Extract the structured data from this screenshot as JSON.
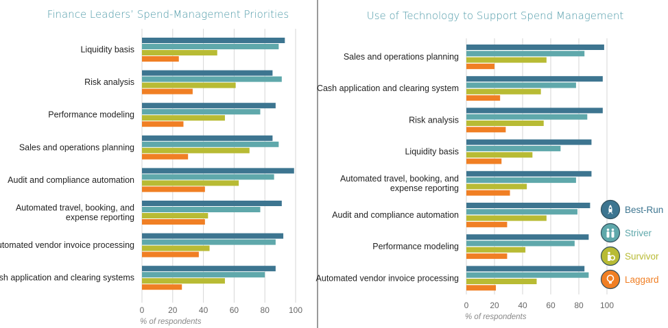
{
  "legend": [
    {
      "name": "Best-Run",
      "color": "#3d7590",
      "icon": "rocket-icon"
    },
    {
      "name": "Striver",
      "color": "#5fa8ab",
      "icon": "people-icon"
    },
    {
      "name": "Survivor",
      "color": "#b8bb34",
      "icon": "life-ring-icon"
    },
    {
      "name": "Laggard",
      "color": "#f07f24",
      "icon": "lightbulb-icon"
    }
  ],
  "chart_data": [
    {
      "type": "bar",
      "orientation": "horizontal",
      "title": "Finance Leaders’ Spend-Management Priorities",
      "xlabel": "% of respondents",
      "xlim": [
        0,
        100
      ],
      "xticks": [
        0,
        20,
        40,
        60,
        80,
        100
      ],
      "categories": [
        "Liquidity basis",
        "Risk analysis",
        "Performance modeling",
        "Sales and operations planning",
        "Audit and compliance automation",
        "Automated travel, booking, and expense reporting",
        "Automated vendor invoice processing",
        "Cash application and clearing systems"
      ],
      "category_lines": [
        [
          "Liquidity basis"
        ],
        [
          "Risk analysis"
        ],
        [
          "Performance modeling"
        ],
        [
          "Sales and operations planning"
        ],
        [
          "Audit and compliance automation"
        ],
        [
          "Automated travel, booking, and",
          "expense reporting"
        ],
        [
          "Automated vendor invoice processing"
        ],
        [
          "Cash application and clearing systems"
        ]
      ],
      "series": [
        {
          "name": "Best-Run",
          "values": [
            93,
            85,
            87,
            85,
            99,
            91,
            92,
            87
          ]
        },
        {
          "name": "Striver",
          "values": [
            89,
            91,
            77,
            89,
            86,
            77,
            87,
            80
          ]
        },
        {
          "name": "Survivor",
          "values": [
            49,
            61,
            54,
            70,
            63,
            43,
            44,
            54
          ]
        },
        {
          "name": "Laggard",
          "values": [
            24,
            33,
            27,
            30,
            41,
            41,
            37,
            26
          ]
        }
      ]
    },
    {
      "type": "bar",
      "orientation": "horizontal",
      "title": "Use of Technology to Support Spend Management",
      "xlabel": "% of respondents",
      "xlim": [
        0,
        100
      ],
      "xticks": [
        0,
        20,
        40,
        60,
        80,
        100
      ],
      "categories": [
        "Sales and operations planning",
        "Cash application and clearing system",
        "Risk analysis",
        "Liquidity basis",
        "Automated travel, booking, and expense reporting",
        "Audit and compliance automation",
        "Performance modeling",
        "Automated vendor invoice processing"
      ],
      "category_lines": [
        [
          "Sales and operations planning"
        ],
        [
          "Cash application and clearing system"
        ],
        [
          "Risk analysis"
        ],
        [
          "Liquidity basis"
        ],
        [
          "Automated travel, booking, and",
          "expense reporting"
        ],
        [
          "Audit and compliance automation"
        ],
        [
          "Performance modeling"
        ],
        [
          "Automated vendor invoice processing"
        ]
      ],
      "series": [
        {
          "name": "Best-Run",
          "values": [
            98,
            97,
            97,
            89,
            89,
            88,
            87,
            84
          ]
        },
        {
          "name": "Striver",
          "values": [
            84,
            78,
            86,
            67,
            78,
            79,
            77,
            87
          ]
        },
        {
          "name": "Survivor",
          "values": [
            57,
            53,
            55,
            47,
            43,
            57,
            42,
            50
          ]
        },
        {
          "name": "Laggard",
          "values": [
            20,
            24,
            28,
            25,
            31,
            29,
            29,
            21
          ]
        }
      ]
    }
  ]
}
